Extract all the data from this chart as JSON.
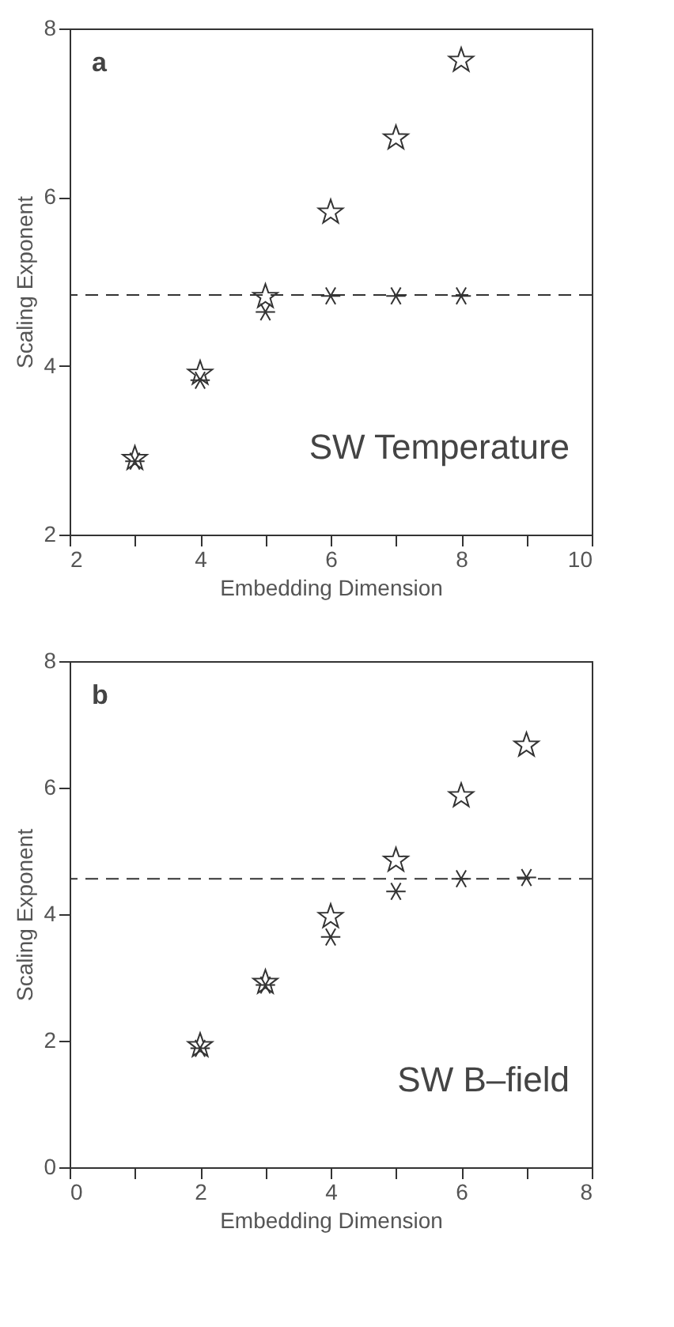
{
  "chart_data": [
    {
      "type": "scatter",
      "xlabel": "Embedding Dimension",
      "ylabel": "Scaling Exponent",
      "annotations": [
        "a",
        "SW Temperature"
      ],
      "x": [
        3,
        4,
        5,
        6,
        7,
        8
      ],
      "series": [
        {
          "color": "#333333",
          "marker": "star",
          "values": [
            2.9,
            3.91,
            4.82,
            5.82,
            6.7,
            7.62
          ]
        },
        {
          "color": "#333333",
          "marker": "cross",
          "values": [
            2.87,
            3.83,
            4.64,
            4.83,
            4.83,
            4.83
          ]
        }
      ],
      "ref_lines": [
        {
          "axis": "y",
          "value": 4.84,
          "color": "#333333",
          "line_style": "dashed"
        }
      ],
      "xlim": [
        2,
        10
      ],
      "xticks": [
        2,
        {
          "value": 3,
          "label": null
        },
        4,
        {
          "value": 5,
          "label": null
        },
        6,
        {
          "value": 7,
          "label": null
        },
        8,
        {
          "value": 9,
          "label": null
        },
        10
      ],
      "ylim": [
        2,
        8
      ],
      "yticks": [
        2,
        4,
        6,
        8
      ],
      "grid": false
    },
    {
      "type": "scatter",
      "xlabel": "Embedding Dimension",
      "ylabel": "Scaling Exponent",
      "annotations": [
        "b",
        "SW B–field"
      ],
      "x": [
        2,
        3,
        4,
        5,
        6,
        7
      ],
      "series": [
        {
          "color": "#333333",
          "marker": "star",
          "values": [
            1.92,
            2.92,
            3.96,
            4.85,
            5.87,
            6.67
          ]
        },
        {
          "color": "#333333",
          "marker": "cross",
          "values": [
            1.88,
            2.88,
            3.64,
            4.36,
            4.56,
            4.58
          ]
        }
      ],
      "ref_lines": [
        {
          "axis": "y",
          "value": 4.56,
          "color": "#333333",
          "line_style": "dashed"
        }
      ],
      "xlim": [
        0,
        8
      ],
      "xticks": [
        0,
        {
          "value": 1,
          "label": null
        },
        2,
        {
          "value": 3,
          "label": null
        },
        4,
        {
          "value": 5,
          "label": null
        },
        6,
        {
          "value": 7,
          "label": null
        },
        8
      ],
      "ylim": [
        0,
        8
      ],
      "yticks": [
        0,
        2,
        4,
        6,
        8
      ],
      "grid": false
    }
  ]
}
